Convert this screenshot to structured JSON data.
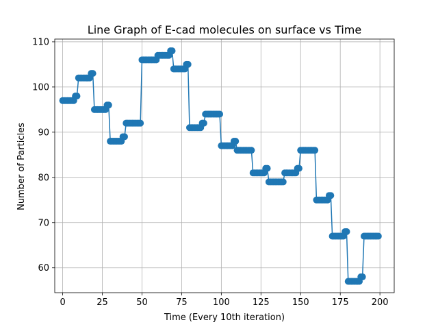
{
  "chart_data": {
    "type": "line",
    "title": "Line Graph of E-cad molecules on surface vs Time",
    "xlabel": "Time (Every 10th iteration)",
    "ylabel": "Number of Particles",
    "xlim": [
      -5,
      209
    ],
    "ylim": [
      54.5,
      110.6
    ],
    "xticks": [
      0,
      25,
      50,
      75,
      100,
      125,
      150,
      175,
      200
    ],
    "yticks": [
      60,
      70,
      80,
      90,
      100,
      110
    ],
    "grid": true,
    "series": [
      {
        "color": "#1f77b4",
        "marker": "circle",
        "x": [
          0,
          1,
          2,
          3,
          4,
          5,
          6,
          7,
          8,
          9,
          10,
          11,
          12,
          13,
          14,
          15,
          16,
          17,
          18,
          19,
          20,
          21,
          22,
          23,
          24,
          25,
          26,
          27,
          28,
          29,
          30,
          31,
          32,
          33,
          34,
          35,
          36,
          37,
          38,
          39,
          40,
          41,
          42,
          43,
          44,
          45,
          46,
          47,
          48,
          49,
          50,
          51,
          52,
          53,
          54,
          55,
          56,
          57,
          58,
          59,
          60,
          61,
          62,
          63,
          64,
          65,
          66,
          67,
          68,
          69,
          70,
          71,
          72,
          73,
          74,
          75,
          76,
          77,
          78,
          79,
          80,
          81,
          82,
          83,
          84,
          85,
          86,
          87,
          88,
          89,
          90,
          91,
          92,
          93,
          94,
          95,
          96,
          97,
          98,
          99,
          100,
          101,
          102,
          103,
          104,
          105,
          106,
          107,
          108,
          109,
          110,
          111,
          112,
          113,
          114,
          115,
          116,
          117,
          118,
          119,
          120,
          121,
          122,
          123,
          124,
          125,
          126,
          127,
          128,
          129,
          130,
          131,
          132,
          133,
          134,
          135,
          136,
          137,
          138,
          139,
          140,
          141,
          142,
          143,
          144,
          145,
          146,
          147,
          148,
          149,
          150,
          151,
          152,
          153,
          154,
          155,
          156,
          157,
          158,
          159,
          160,
          161,
          162,
          163,
          164,
          165,
          166,
          167,
          168,
          169,
          170,
          171,
          172,
          173,
          174,
          175,
          176,
          177,
          178,
          179,
          180,
          181,
          182,
          183,
          184,
          185,
          186,
          187,
          188,
          189,
          190,
          191,
          192,
          193,
          194,
          195,
          196,
          197,
          198,
          199
        ],
        "y": [
          97,
          97,
          97,
          97,
          97,
          97,
          97,
          97,
          98,
          98,
          102,
          102,
          102,
          102,
          102,
          102,
          102,
          102,
          103,
          103,
          95,
          95,
          95,
          95,
          95,
          95,
          95,
          95,
          96,
          96,
          88,
          88,
          88,
          88,
          88,
          88,
          88,
          88,
          89,
          89,
          92,
          92,
          92,
          92,
          92,
          92,
          92,
          92,
          92,
          92,
          106,
          106,
          106,
          106,
          106,
          106,
          106,
          106,
          106,
          106,
          107,
          107,
          107,
          107,
          107,
          107,
          107,
          107,
          108,
          108,
          104,
          104,
          104,
          104,
          104,
          104,
          104,
          104,
          105,
          105,
          91,
          91,
          91,
          91,
          91,
          91,
          91,
          91,
          92,
          92,
          94,
          94,
          94,
          94,
          94,
          94,
          94,
          94,
          94,
          94,
          87,
          87,
          87,
          87,
          87,
          87,
          87,
          87,
          88,
          88,
          86,
          86,
          86,
          86,
          86,
          86,
          86,
          86,
          86,
          86,
          81,
          81,
          81,
          81,
          81,
          81,
          81,
          81,
          82,
          82,
          79,
          79,
          79,
          79,
          79,
          79,
          79,
          79,
          79,
          79,
          81,
          81,
          81,
          81,
          81,
          81,
          81,
          81,
          82,
          82,
          86,
          86,
          86,
          86,
          86,
          86,
          86,
          86,
          86,
          86,
          75,
          75,
          75,
          75,
          75,
          75,
          75,
          75,
          76,
          76,
          67,
          67,
          67,
          67,
          67,
          67,
          67,
          67,
          68,
          68,
          57,
          57,
          57,
          57,
          57,
          57,
          57,
          57,
          58,
          58,
          67,
          67,
          67,
          67,
          67,
          67,
          67,
          67,
          67,
          67
        ]
      }
    ]
  }
}
